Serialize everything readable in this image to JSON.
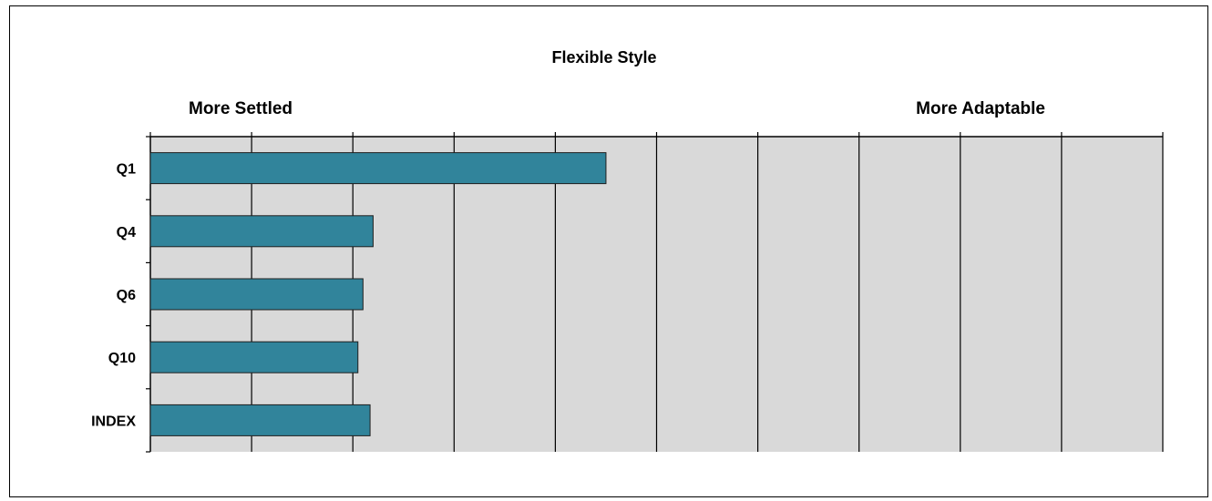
{
  "chart_data": {
    "type": "bar",
    "orientation": "horizontal",
    "title": "Flexible Style",
    "left_label": "More Settled",
    "right_label": "More Adaptable",
    "categories": [
      "Q1",
      "Q4",
      "Q6",
      "Q10",
      "INDEX"
    ],
    "values": [
      4.5,
      2.2,
      2.1,
      2.05,
      2.17
    ],
    "xlim": [
      0,
      10
    ],
    "grid": true,
    "grid_divisions": 10,
    "bar_color": "#31849B",
    "plot_background": "#D9D9D9"
  }
}
